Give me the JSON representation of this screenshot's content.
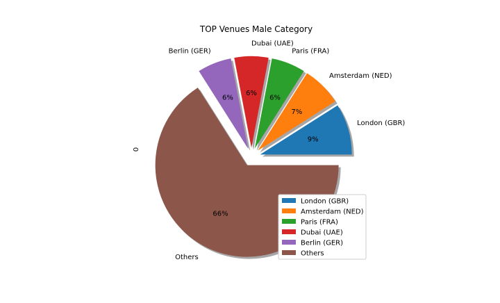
{
  "chart_data": {
    "type": "pie",
    "title": "TOP Venues Male Category",
    "ylabel": "0",
    "categories": [
      "London (GBR)",
      "Amsterdam (NED)",
      "Paris (FRA)",
      "Dubai (UAE)",
      "Berlin (GER)",
      "Others"
    ],
    "values": [
      9,
      7,
      6,
      6,
      6,
      66
    ],
    "value_labels": [
      "9%",
      "7%",
      "6%",
      "6%",
      "6%",
      "66%"
    ],
    "colors": [
      "#1f77b4",
      "#ff7f0e",
      "#2ca02c",
      "#d62728",
      "#9467bd",
      "#8c564b"
    ],
    "exploded": true,
    "shadow": true,
    "legend_position": "lower-right"
  }
}
